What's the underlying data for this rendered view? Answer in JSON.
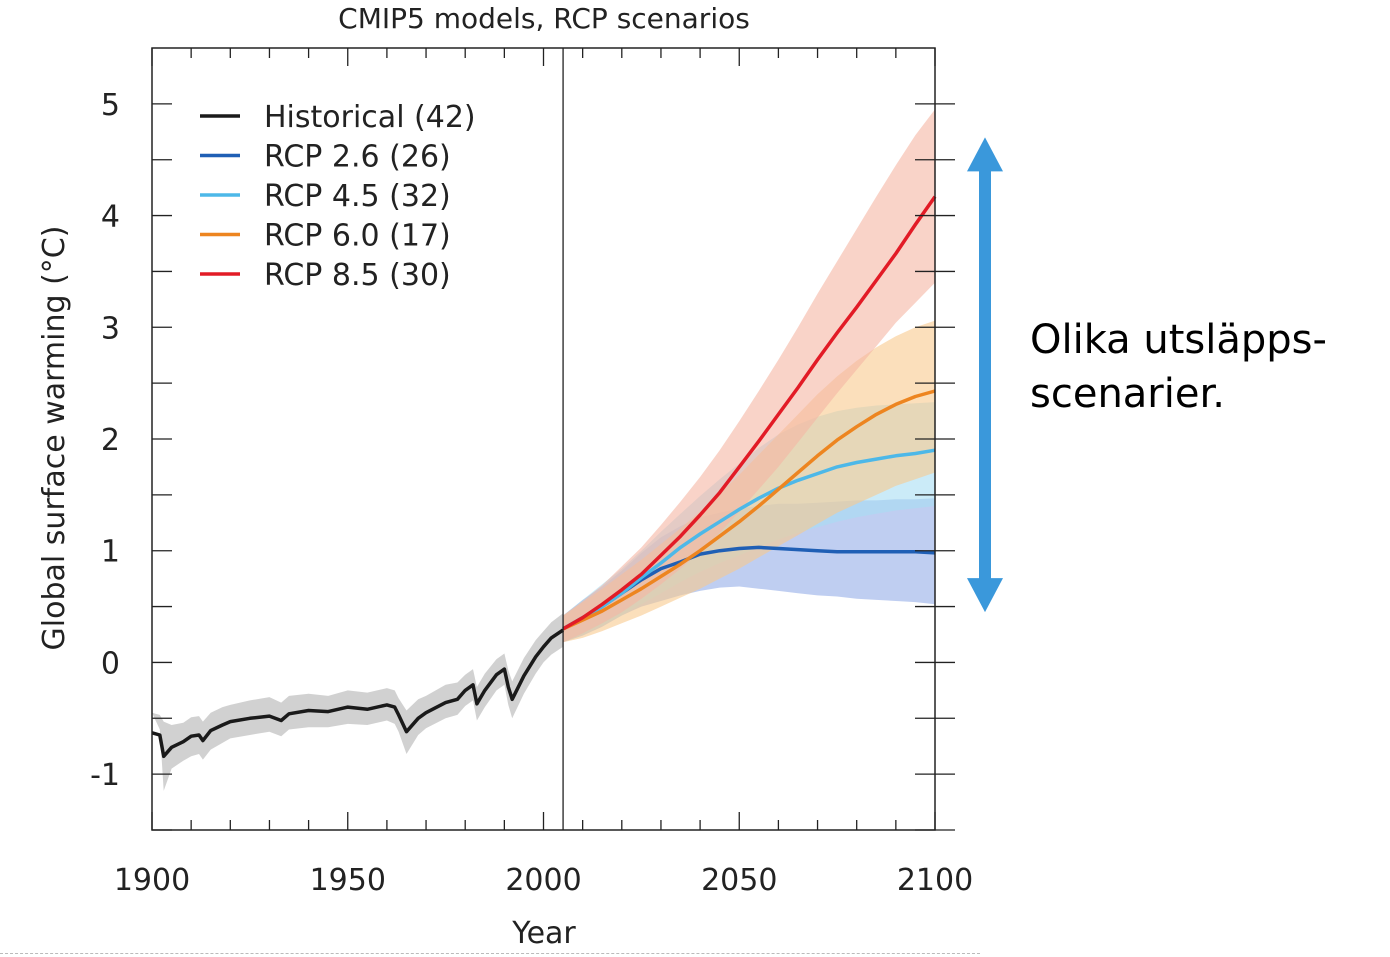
{
  "chart_data": {
    "type": "line",
    "title": "CMIP5 models, RCP scenarios",
    "xlabel": "Year",
    "ylabel": "Global surface warming (°C)",
    "xlim": [
      1900,
      2100
    ],
    "ylim": [
      -1.5,
      5.5
    ],
    "xticks": [
      1900,
      1950,
      2000,
      2050,
      2100
    ],
    "yticks": [
      -1,
      0,
      1,
      2,
      3,
      4,
      5
    ],
    "divider_year": 2005,
    "legend_position": "top-left",
    "series": [
      {
        "name": "Historical (42)",
        "color": "#1a1a1a",
        "band_color": "#b3b3b3",
        "x": [
          1900,
          1902,
          1903,
          1905,
          1908,
          1910,
          1912,
          1913,
          1915,
          1918,
          1920,
          1925,
          1930,
          1933,
          1935,
          1940,
          1945,
          1950,
          1955,
          1960,
          1962,
          1963,
          1965,
          1968,
          1970,
          1975,
          1978,
          1980,
          1982,
          1983,
          1985,
          1988,
          1990,
          1991,
          1992,
          1995,
          1998,
          2000,
          2002,
          2005
        ],
        "y": [
          -0.63,
          -0.65,
          -0.84,
          -0.76,
          -0.71,
          -0.66,
          -0.65,
          -0.7,
          -0.61,
          -0.56,
          -0.53,
          -0.5,
          -0.48,
          -0.52,
          -0.46,
          -0.43,
          -0.44,
          -0.4,
          -0.42,
          -0.38,
          -0.4,
          -0.47,
          -0.62,
          -0.5,
          -0.45,
          -0.36,
          -0.33,
          -0.25,
          -0.2,
          -0.37,
          -0.25,
          -0.11,
          -0.06,
          -0.22,
          -0.33,
          -0.12,
          0.05,
          0.14,
          0.22,
          0.29
        ],
        "y_low": [
          -0.45,
          -0.6,
          -1.15,
          -0.95,
          -0.88,
          -0.84,
          -0.82,
          -0.87,
          -0.78,
          -0.72,
          -0.68,
          -0.65,
          -0.62,
          -0.66,
          -0.6,
          -0.58,
          -0.58,
          -0.55,
          -0.56,
          -0.52,
          -0.55,
          -0.62,
          -0.82,
          -0.65,
          -0.59,
          -0.5,
          -0.47,
          -0.39,
          -0.34,
          -0.52,
          -0.4,
          -0.25,
          -0.2,
          -0.38,
          -0.5,
          -0.28,
          -0.1,
          0.0,
          0.07,
          0.14
        ],
        "y_high": [
          -0.45,
          -0.47,
          -0.53,
          -0.56,
          -0.54,
          -0.49,
          -0.48,
          -0.53,
          -0.45,
          -0.4,
          -0.38,
          -0.34,
          -0.31,
          -0.36,
          -0.3,
          -0.28,
          -0.3,
          -0.25,
          -0.27,
          -0.23,
          -0.25,
          -0.32,
          -0.43,
          -0.33,
          -0.3,
          -0.2,
          -0.18,
          -0.11,
          -0.06,
          -0.22,
          -0.1,
          0.03,
          0.08,
          -0.07,
          -0.17,
          0.04,
          0.2,
          0.28,
          0.36,
          0.44
        ]
      },
      {
        "name": "RCP 2.6 (26)",
        "color": "#1f5fb5",
        "band_color": "#95aee8",
        "x": [
          2005,
          2010,
          2015,
          2020,
          2025,
          2030,
          2035,
          2040,
          2045,
          2050,
          2055,
          2060,
          2065,
          2070,
          2075,
          2080,
          2085,
          2090,
          2095,
          2100
        ],
        "y": [
          0.3,
          0.4,
          0.5,
          0.62,
          0.74,
          0.84,
          0.9,
          0.97,
          1.0,
          1.02,
          1.03,
          1.02,
          1.01,
          1.0,
          0.99,
          0.99,
          0.99,
          0.99,
          0.99,
          0.98
        ],
        "y_low": [
          0.18,
          0.24,
          0.32,
          0.42,
          0.5,
          0.55,
          0.6,
          0.64,
          0.67,
          0.68,
          0.66,
          0.64,
          0.62,
          0.6,
          0.59,
          0.57,
          0.56,
          0.55,
          0.54,
          0.52
        ],
        "y_high": [
          0.42,
          0.56,
          0.68,
          0.82,
          0.98,
          1.12,
          1.22,
          1.3,
          1.34,
          1.38,
          1.4,
          1.42,
          1.42,
          1.43,
          1.44,
          1.45,
          1.45,
          1.46,
          1.46,
          1.47
        ]
      },
      {
        "name": "RCP 4.5 (32)",
        "color": "#4db8e8",
        "band_color": "#a9ddf3",
        "x": [
          2005,
          2010,
          2015,
          2020,
          2025,
          2030,
          2035,
          2040,
          2045,
          2050,
          2055,
          2060,
          2065,
          2070,
          2075,
          2080,
          2085,
          2090,
          2095,
          2100
        ],
        "y": [
          0.3,
          0.4,
          0.5,
          0.62,
          0.76,
          0.89,
          1.03,
          1.15,
          1.26,
          1.37,
          1.47,
          1.56,
          1.63,
          1.69,
          1.75,
          1.79,
          1.82,
          1.85,
          1.87,
          1.9
        ],
        "y_low": [
          0.18,
          0.25,
          0.33,
          0.42,
          0.52,
          0.62,
          0.72,
          0.81,
          0.89,
          0.96,
          1.03,
          1.1,
          1.16,
          1.21,
          1.26,
          1.3,
          1.33,
          1.36,
          1.38,
          1.4
        ],
        "y_high": [
          0.42,
          0.56,
          0.7,
          0.84,
          1.0,
          1.17,
          1.33,
          1.49,
          1.64,
          1.78,
          1.92,
          2.04,
          2.13,
          2.2,
          2.25,
          2.28,
          2.3,
          2.31,
          2.32,
          2.33
        ]
      },
      {
        "name": "RCP 6.0 (17)",
        "color": "#ed8520",
        "band_color": "#f8c98e",
        "x": [
          2005,
          2010,
          2015,
          2020,
          2025,
          2030,
          2035,
          2040,
          2045,
          2050,
          2055,
          2060,
          2065,
          2070,
          2075,
          2080,
          2085,
          2090,
          2095,
          2100
        ],
        "y": [
          0.3,
          0.38,
          0.46,
          0.56,
          0.66,
          0.77,
          0.88,
          1.0,
          1.13,
          1.26,
          1.4,
          1.55,
          1.7,
          1.85,
          1.99,
          2.11,
          2.22,
          2.31,
          2.38,
          2.43
        ],
        "y_low": [
          0.18,
          0.22,
          0.28,
          0.35,
          0.42,
          0.5,
          0.58,
          0.66,
          0.75,
          0.84,
          0.94,
          1.04,
          1.14,
          1.24,
          1.34,
          1.42,
          1.5,
          1.58,
          1.64,
          1.7
        ],
        "y_high": [
          0.42,
          0.54,
          0.66,
          0.79,
          0.92,
          1.06,
          1.2,
          1.35,
          1.51,
          1.68,
          1.86,
          2.04,
          2.22,
          2.4,
          2.56,
          2.7,
          2.82,
          2.92,
          3.0,
          3.06
        ]
      },
      {
        "name": "RCP 8.5 (30)",
        "color": "#e21b26",
        "band_color": "#f5b5a3",
        "x": [
          2005,
          2010,
          2015,
          2020,
          2025,
          2030,
          2035,
          2040,
          2045,
          2050,
          2055,
          2060,
          2065,
          2070,
          2075,
          2080,
          2085,
          2090,
          2095,
          2100
        ],
        "y": [
          0.3,
          0.4,
          0.52,
          0.65,
          0.79,
          0.96,
          1.13,
          1.32,
          1.52,
          1.75,
          1.98,
          2.22,
          2.46,
          2.71,
          2.95,
          3.18,
          3.42,
          3.66,
          3.92,
          4.17
        ],
        "y_low": [
          0.18,
          0.26,
          0.35,
          0.45,
          0.57,
          0.7,
          0.84,
          0.99,
          1.16,
          1.35,
          1.55,
          1.75,
          1.97,
          2.19,
          2.41,
          2.62,
          2.83,
          3.04,
          3.22,
          3.4
        ],
        "y_high": [
          0.42,
          0.55,
          0.69,
          0.86,
          1.03,
          1.23,
          1.44,
          1.66,
          1.9,
          2.16,
          2.43,
          2.71,
          3.0,
          3.3,
          3.59,
          3.88,
          4.17,
          4.45,
          4.72,
          4.95
        ]
      }
    ],
    "annotation": {
      "text_lines": [
        "Olika utsläpps-",
        "scenarier."
      ],
      "arrow_color": "#3a98db",
      "arrow_y_range": [
        0.45,
        4.7
      ]
    }
  }
}
